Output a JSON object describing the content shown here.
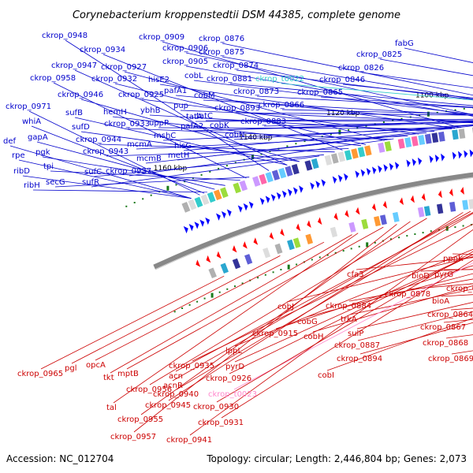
{
  "title": "Corynebacterium kroppenstedtii DSM 44385, complete genome",
  "footer": {
    "accession": "Accession: NC_012704",
    "summary": "Topology: circular; Length: 2,446,804 bp; Genes: 2,073"
  },
  "colors": {
    "forward_label": "#0000cc",
    "reverse_label": "#cc0000",
    "trna_forward": "#33cccc",
    "trna_reverse": "#ff88cc",
    "backbone": "#888888",
    "tick": "#1a7a1a"
  },
  "ticks": [
    "1160 kbp",
    "1140 kbp",
    "1120 kbp",
    "1100 kbp",
    "1080 kbp",
    "1060 kbp",
    "1040 kbp",
    "1020 kbp",
    "1000 kbp",
    "980 kbp",
    "960 kbp"
  ],
  "forward_labels": [
    "ckrop_0948",
    "ckrop_0934",
    "ckrop_0909",
    "ckrop_0876",
    "ckrop_0906",
    "ckrop_0875",
    "fabG",
    "ckrop_0825",
    "ckrop_0947",
    "ckrop_0927",
    "ckrop_0905",
    "ckrop_0874",
    "ckrop_0826",
    "ckrop_0958",
    "ckrop_0932",
    "hisE2",
    "cobL",
    "ckrop_0881",
    "ckrop_t0022",
    "ckrop_0846",
    "ckrop_0946",
    "ckrop_0925",
    "pafA1",
    "cobM",
    "ckrop_0873",
    "ckrop_0865",
    "ckrop_0971",
    "sufB",
    "hemH",
    "ybhB",
    "pup",
    "ckrop_0893",
    "ckrop_0866",
    "sufD",
    "ckrop_0933",
    "uppP",
    "tatA",
    "ckrop_0883",
    "whiA",
    "pafA2",
    "cobK",
    "gapA",
    "ckrop_0944",
    "mshC",
    "tatC",
    "cobN",
    "def",
    "pgk",
    "mcmA",
    "hisG",
    "rpe",
    "tpi",
    "ckrop_0943",
    "mcmB",
    "metH",
    "ribD",
    "sufC",
    "ckrop_0937",
    "ribH",
    "secG",
    "sufR"
  ],
  "reverse_labels": [
    "ppnK",
    "pyrG",
    "bioD",
    "ckrop_0860",
    "bioA",
    "cfa3",
    "ckrop_0864",
    "ckrop_0878",
    "ckrop_0867",
    "ckrop_0884",
    "ckrop_0868",
    "trkA",
    "sulP",
    "ckrop_0869",
    "cobJ",
    "ckrop_0887",
    "cobG",
    "ckrop_0894",
    "ckrop_0915",
    "cobH",
    "cobI",
    "lppL",
    "pyrD",
    "ckrop_0965",
    "pgl",
    "opcA",
    "ckrop_0935",
    "acn",
    "tkt",
    "mptB",
    "acnR",
    "ckrop_0926",
    "ckrop_0956",
    "ckrop_0940",
    "ckrop_t0023",
    "ckrop_0945",
    "tal",
    "ckrop_0930",
    "ckrop_0955",
    "ckrop_0931",
    "ckrop_0957",
    "ckrop_0941"
  ]
}
